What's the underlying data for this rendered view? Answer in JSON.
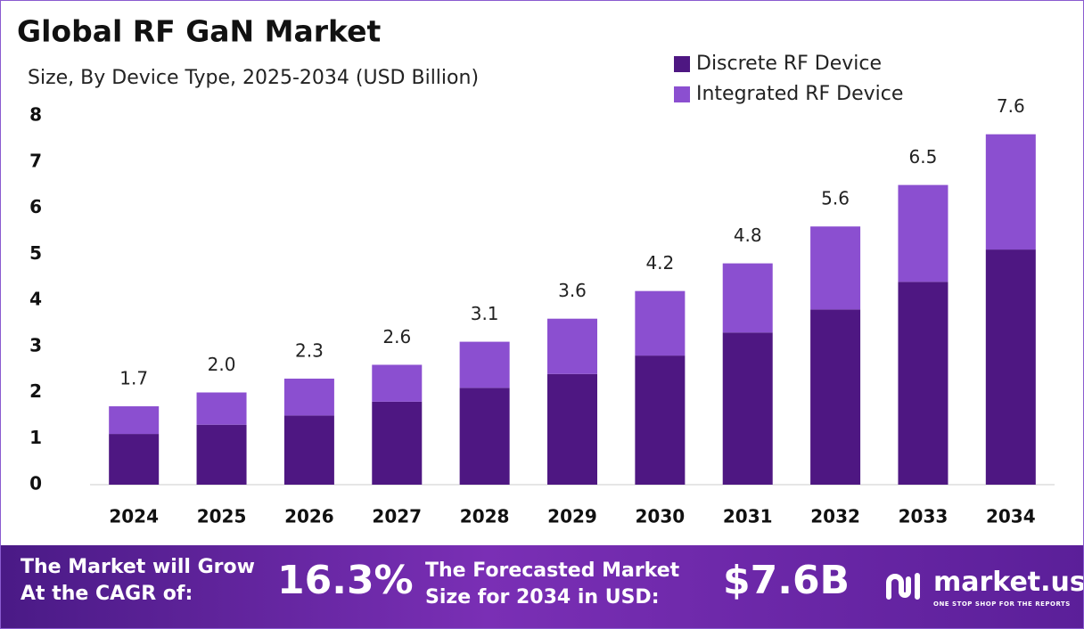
{
  "chart_data": {
    "type": "stacked-bar",
    "title": "Global RF GaN Market",
    "subtitle": "Size, By Device Type, 2025-2034 (USD Billion)",
    "categories": [
      "2024",
      "2025",
      "2026",
      "2027",
      "2028",
      "2029",
      "2030",
      "2031",
      "2032",
      "2033",
      "2034"
    ],
    "series": [
      {
        "name": "Discrete RF Device",
        "color": "#4e1782",
        "values": [
          1.1,
          1.3,
          1.5,
          1.8,
          2.1,
          2.4,
          2.8,
          3.3,
          3.8,
          4.4,
          5.1
        ]
      },
      {
        "name": "Integrated RF Device",
        "color": "#8b4fd0",
        "values": [
          0.6,
          0.7,
          0.8,
          0.8,
          1.0,
          1.2,
          1.4,
          1.5,
          1.8,
          2.1,
          2.5
        ]
      }
    ],
    "totals": {
      "values": [
        1.7,
        2.0,
        2.3,
        2.6,
        3.1,
        3.6,
        4.2,
        4.8,
        5.6,
        6.5,
        7.6
      ],
      "value_labels": [
        "1.7",
        "2.0",
        "2.3",
        "2.6",
        "3.1",
        "3.6",
        "4.2",
        "4.8",
        "5.6",
        "6.5",
        "7.6"
      ]
    },
    "ylim": [
      0,
      8
    ],
    "yticks": [
      0,
      1,
      2,
      3,
      4,
      5,
      6,
      7,
      8
    ],
    "grid": false,
    "legend": "top-right"
  },
  "footer": {
    "cagr_text": [
      "The Market will Grow",
      "At the CAGR of:"
    ],
    "cagr": "16.3%",
    "forecast_text": [
      "The Forecasted Market",
      "Size for 2034 in USD:"
    ],
    "forecast": "$7.6B",
    "brand": "market.us",
    "tagline": "ONE STOP SHOP FOR THE REPORTS"
  }
}
